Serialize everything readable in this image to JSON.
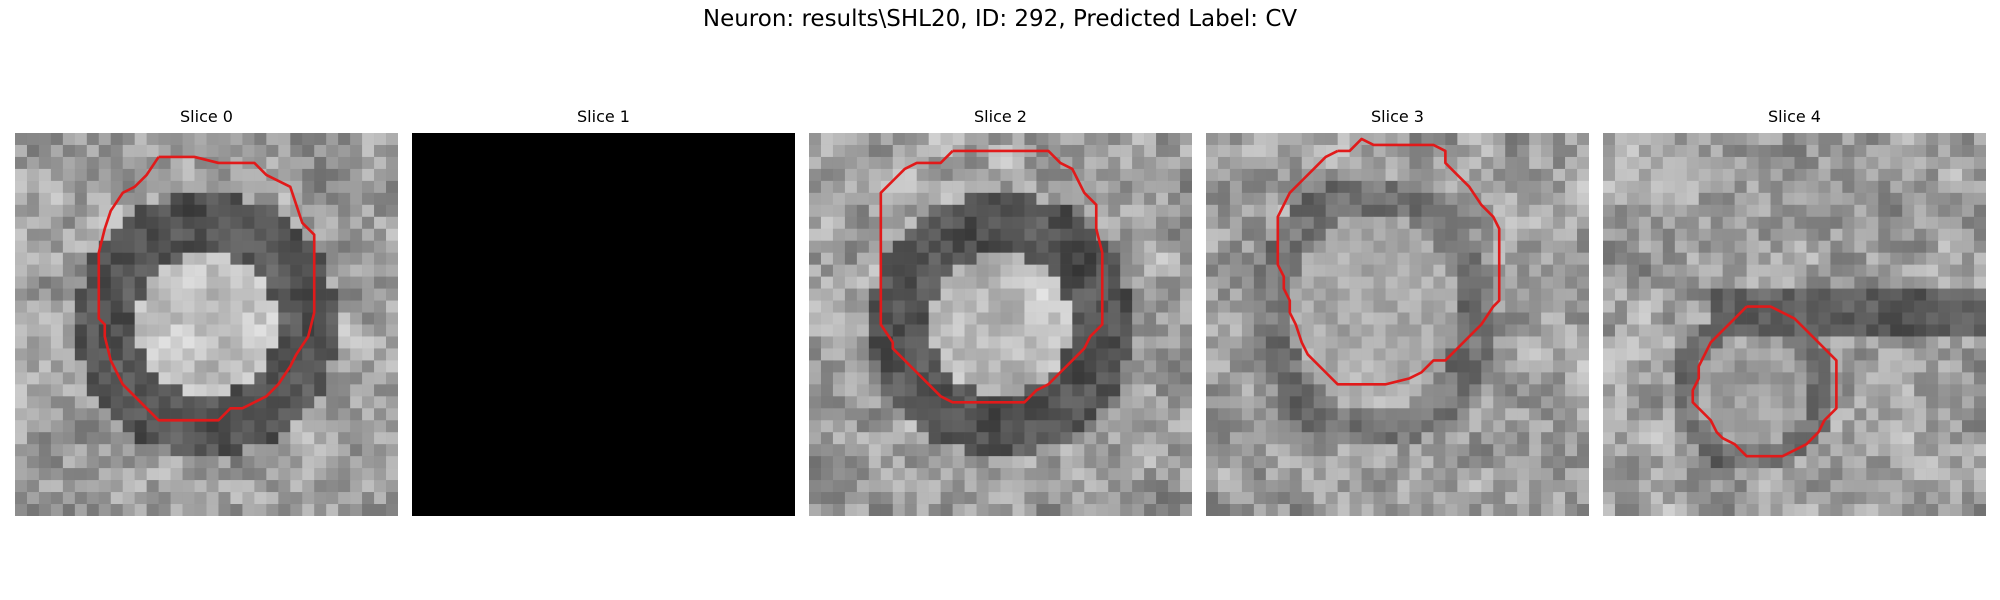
{
  "figure": {
    "title": "Neuron: results\\SHL20, ID: 292, Predicted Label: CV",
    "contour_color": "#e11a1a"
  },
  "slices": [
    {
      "label": "Slice 0",
      "kind": "ring"
    },
    {
      "label": "Slice 1",
      "kind": "blank"
    },
    {
      "label": "Slice 2",
      "kind": "ring"
    },
    {
      "label": "Slice 3",
      "kind": "blob"
    },
    {
      "label": "Slice 4",
      "kind": "small"
    }
  ]
}
